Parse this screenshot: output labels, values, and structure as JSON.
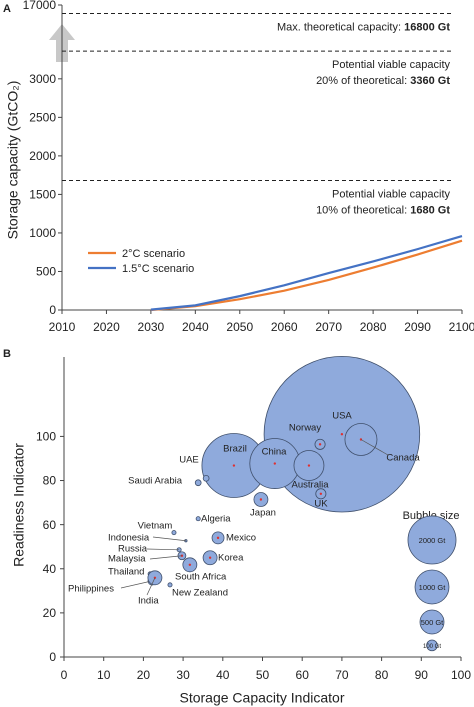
{
  "chart_data": [
    {
      "panel": "A",
      "type": "line",
      "y_label": "Storage capacity (GtCO₂)",
      "x": [
        2030,
        2040,
        2050,
        2060,
        2070,
        2080,
        2090,
        2100
      ],
      "series": [
        {
          "name": "2°C scenario",
          "color": "#ed7d31",
          "values": [
            0,
            50,
            140,
            250,
            390,
            550,
            720,
            900
          ]
        },
        {
          "name": "1.5°C scenario",
          "color": "#4472c4",
          "values": [
            5,
            60,
            180,
            320,
            480,
            630,
            790,
            960
          ]
        }
      ],
      "xlim": [
        2010,
        2100
      ],
      "xticks": [
        2010,
        2020,
        2030,
        2040,
        2050,
        2060,
        2070,
        2080,
        2090,
        2100
      ],
      "ylim": [
        0,
        17000
      ],
      "yticks": [
        0,
        500,
        1000,
        1500,
        2000,
        2500,
        3000,
        17000
      ],
      "axis_break": [
        3400,
        16600
      ],
      "legend": "left",
      "reference_lines": [
        {
          "value": 16800,
          "label": "16800 Gt",
          "text": [
            "Max. theoretical capacity:"
          ]
        },
        {
          "value": 3360,
          "label": "3360 Gt",
          "text": [
            "Potential viable capacity",
            "20% of theoretical:"
          ]
        },
        {
          "value": 1680,
          "label": "1680 Gt",
          "text": [
            "Potential viable capacity",
            "10% of theoretical:"
          ]
        }
      ]
    },
    {
      "panel": "B",
      "type": "bubble",
      "x_label": "Storage Capacity Indicator",
      "y_label": "Readiness Indicator",
      "color": "#8faadc",
      "labels": [
        "USA",
        "Canada",
        "Norway",
        "Brazil",
        "China",
        "Australia",
        "UK",
        "Japan",
        "UAE",
        "Saudi Arabia",
        "Algeria",
        "Mexico",
        "Vietnam",
        "Indonesia",
        "Russia",
        "Malaysia",
        "Korea",
        "South Africa",
        "Thailand",
        "Philippines",
        "India",
        "New Zealand"
      ],
      "x": [
        70,
        74.8,
        64.5,
        42.8,
        53.1,
        61.7,
        64.7,
        49.6,
        35.8,
        33.8,
        33.8,
        38.8,
        27.7,
        30.7,
        29,
        29.7,
        36.8,
        31.7,
        21.7,
        22.2,
        22.9,
        26.7
      ],
      "values": [
        101,
        98.6,
        96.4,
        86.8,
        87.7,
        86.8,
        74,
        71.4,
        81,
        79,
        62.7,
        54,
        56.4,
        52.7,
        48.6,
        45.9,
        45,
        41.8,
        37.7,
        34.5,
        35.9,
        32.7
      ],
      "sizes": [
        21000,
        890,
        90,
        3550,
        2170,
        780,
        90,
        170,
        30,
        30,
        15,
        125,
        15,
        5,
        15,
        55,
        170,
        170,
        15,
        60,
        170,
        15
      ],
      "xlim": [
        0,
        100
      ],
      "xticks": [
        0,
        10,
        20,
        30,
        40,
        50,
        60,
        70,
        80,
        90,
        100
      ],
      "ylim": [
        0,
        136
      ],
      "yticks": [
        0,
        20,
        40,
        60,
        80,
        100
      ],
      "size_legend": {
        "title": "Bubble size",
        "sizes": [
          {
            "value": 2000,
            "label": "2000 Gt"
          },
          {
            "value": 1000,
            "label": "1000 Gt"
          },
          {
            "value": 500,
            "label": "500 Gt"
          },
          {
            "value": 100,
            "label": "100 Gt"
          }
        ]
      }
    }
  ]
}
